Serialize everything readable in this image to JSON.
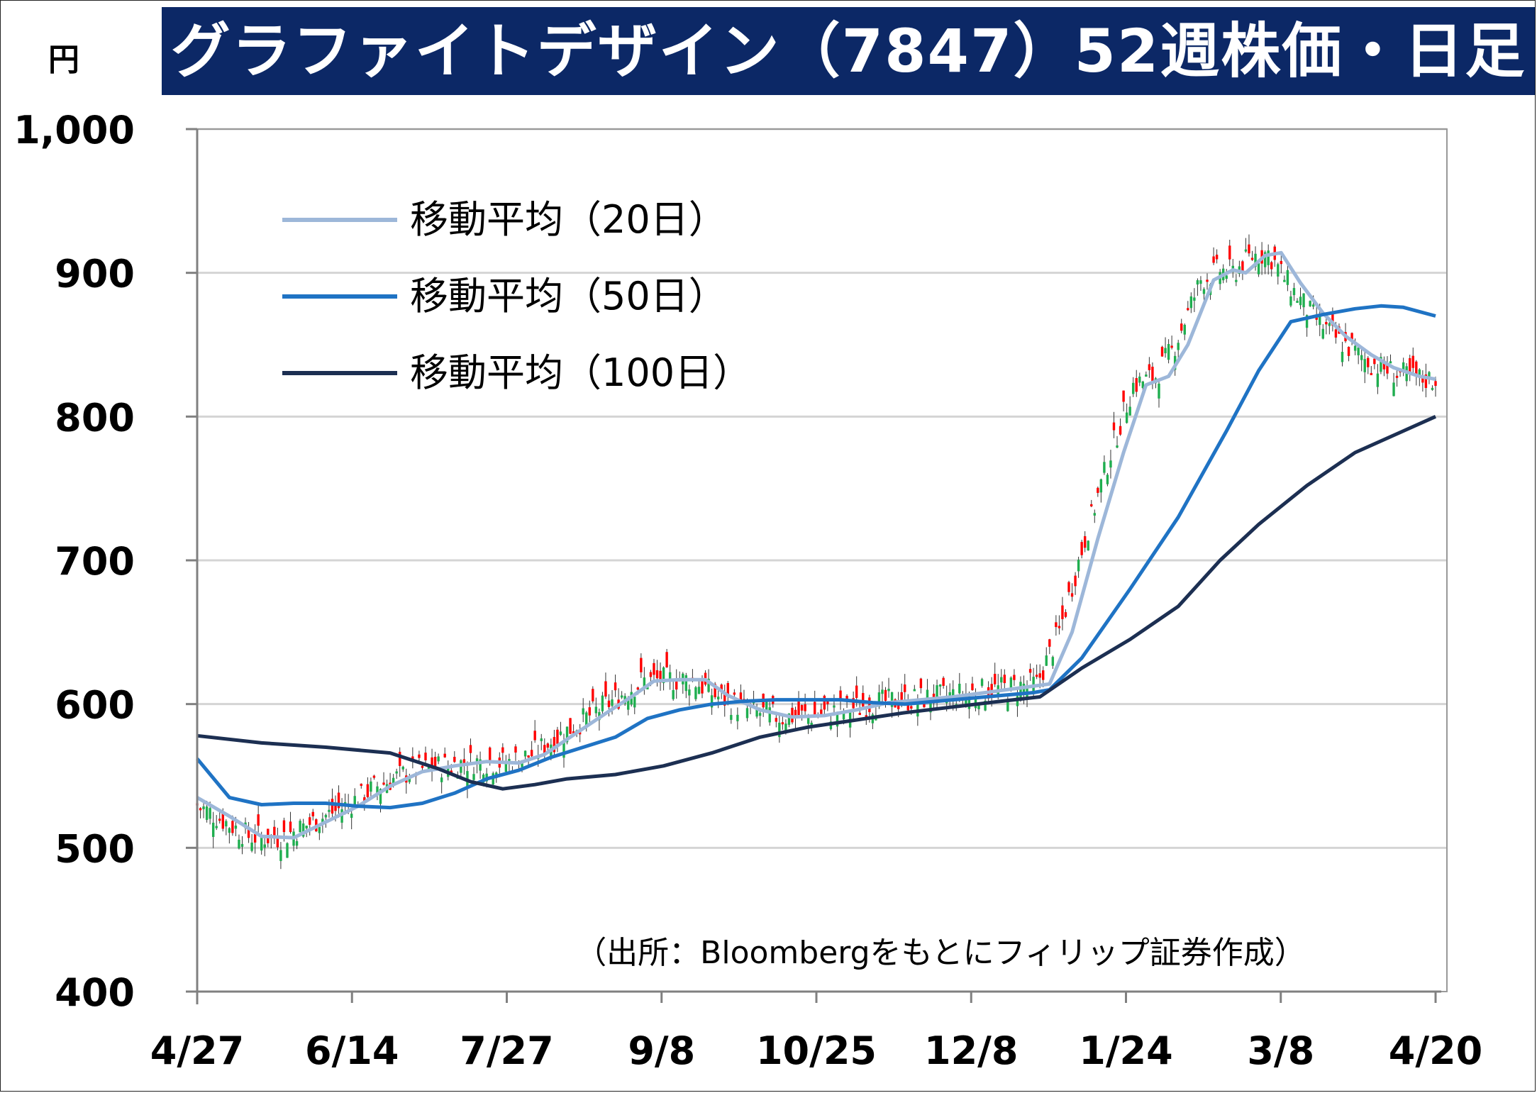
{
  "header": {
    "unit": "円",
    "title": "グラファイトデザイン（7847）52週株価・日足"
  },
  "source_note": "（出所：Bloombergをもとにフィリップ証券作成）",
  "colors": {
    "title_bg": "#0c2866",
    "up_candle": "#ff0000",
    "down_candle": "#1fae4f",
    "ma20": "#9db7d9",
    "ma50": "#1f73c4",
    "ma100": "#1c2f52",
    "grid": "#d4d4d4"
  },
  "chart_data": {
    "type": "candlestick",
    "title": "グラファイトデザイン（7847）52週株価・日足",
    "ylabel": "円",
    "ylim": [
      400,
      1000
    ],
    "yticks": [
      {
        "value": 400,
        "label": "400"
      },
      {
        "value": 500,
        "label": "500"
      },
      {
        "value": 600,
        "label": "600"
      },
      {
        "value": 700,
        "label": "700"
      },
      {
        "value": 800,
        "label": "800"
      },
      {
        "value": 900,
        "label": "900"
      },
      {
        "value": 1000,
        "label": "1,000"
      }
    ],
    "xticks": [
      "4/27",
      "6/14",
      "7/27",
      "9/8",
      "10/25",
      "12/8",
      "1/24",
      "3/8",
      "4/20"
    ],
    "grid": true,
    "legend_position": "top-left",
    "legend": [
      {
        "key": "ma20",
        "label": "移動平均（20日）"
      },
      {
        "key": "ma50",
        "label": "移動平均（50日）"
      },
      {
        "key": "ma100",
        "label": "移動平均（100日）"
      }
    ],
    "series": [
      {
        "key": "ma20",
        "label": "移動平均（20日）",
        "points": [
          [
            0,
            535
          ],
          [
            10,
            522
          ],
          [
            20,
            508
          ],
          [
            30,
            507
          ],
          [
            40,
            518
          ],
          [
            50,
            529
          ],
          [
            60,
            543
          ],
          [
            70,
            553
          ],
          [
            80,
            557
          ],
          [
            90,
            560
          ],
          [
            100,
            559
          ],
          [
            108,
            565
          ],
          [
            118,
            580
          ],
          [
            128,
            595
          ],
          [
            135,
            605
          ],
          [
            142,
            616
          ],
          [
            150,
            617
          ],
          [
            158,
            617
          ],
          [
            165,
            606
          ],
          [
            175,
            596
          ],
          [
            185,
            591
          ],
          [
            195,
            592
          ],
          [
            205,
            596
          ],
          [
            215,
            601
          ],
          [
            225,
            603
          ],
          [
            235,
            605
          ],
          [
            245,
            608
          ],
          [
            255,
            611
          ],
          [
            265,
            614
          ],
          [
            272,
            650
          ],
          [
            280,
            715
          ],
          [
            288,
            775
          ],
          [
            295,
            822
          ],
          [
            302,
            828
          ],
          [
            308,
            850
          ],
          [
            316,
            895
          ],
          [
            322,
            902
          ],
          [
            326,
            900
          ],
          [
            332,
            912
          ],
          [
            337,
            914
          ],
          [
            343,
            893
          ],
          [
            350,
            872
          ],
          [
            357,
            856
          ],
          [
            365,
            843
          ],
          [
            372,
            834
          ],
          [
            380,
            828
          ],
          [
            385,
            826
          ]
        ]
      },
      {
        "key": "ma50",
        "label": "移動平均（50日）",
        "points": [
          [
            0,
            562
          ],
          [
            10,
            535
          ],
          [
            20,
            530
          ],
          [
            30,
            531
          ],
          [
            40,
            531
          ],
          [
            50,
            529
          ],
          [
            60,
            528
          ],
          [
            70,
            531
          ],
          [
            80,
            538
          ],
          [
            90,
            548
          ],
          [
            100,
            554
          ],
          [
            110,
            563
          ],
          [
            120,
            570
          ],
          [
            130,
            577
          ],
          [
            140,
            590
          ],
          [
            150,
            596
          ],
          [
            160,
            600
          ],
          [
            170,
            602
          ],
          [
            180,
            603
          ],
          [
            190,
            603
          ],
          [
            200,
            603
          ],
          [
            210,
            601
          ],
          [
            220,
            600
          ],
          [
            230,
            602
          ],
          [
            240,
            604
          ],
          [
            250,
            606
          ],
          [
            260,
            608
          ],
          [
            265,
            610
          ],
          [
            275,
            632
          ],
          [
            290,
            680
          ],
          [
            305,
            730
          ],
          [
            320,
            790
          ],
          [
            330,
            832
          ],
          [
            340,
            866
          ],
          [
            350,
            871
          ],
          [
            360,
            875
          ],
          [
            368,
            877
          ],
          [
            375,
            876
          ],
          [
            385,
            870
          ]
        ]
      },
      {
        "key": "ma100",
        "label": "移動平均（100日）",
        "points": [
          [
            0,
            578
          ],
          [
            20,
            573
          ],
          [
            40,
            570
          ],
          [
            60,
            566
          ],
          [
            75,
            555
          ],
          [
            85,
            546
          ],
          [
            95,
            541
          ],
          [
            105,
            544
          ],
          [
            115,
            548
          ],
          [
            130,
            551
          ],
          [
            145,
            557
          ],
          [
            160,
            566
          ],
          [
            175,
            577
          ],
          [
            190,
            584
          ],
          [
            205,
            589
          ],
          [
            220,
            594
          ],
          [
            235,
            598
          ],
          [
            250,
            602
          ],
          [
            262,
            605
          ],
          [
            275,
            625
          ],
          [
            290,
            645
          ],
          [
            305,
            668
          ],
          [
            318,
            700
          ],
          [
            330,
            725
          ],
          [
            345,
            752
          ],
          [
            360,
            775
          ],
          [
            375,
            790
          ],
          [
            385,
            800
          ]
        ]
      }
    ]
  }
}
